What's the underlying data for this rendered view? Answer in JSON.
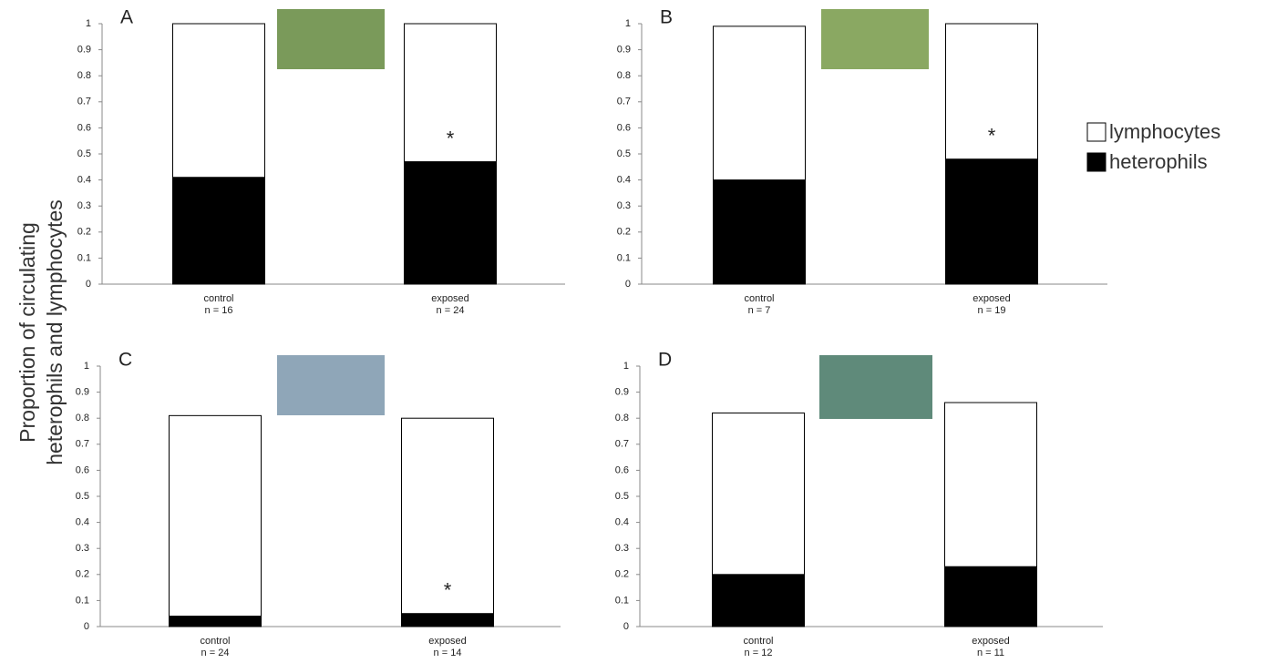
{
  "chart_data": [
    {
      "type": "bar",
      "stacked": true,
      "label": "A",
      "ylim": [
        0,
        1
      ],
      "yticks": [
        0,
        0.1,
        0.2,
        0.3,
        0.4,
        0.5,
        0.6,
        0.7,
        0.8,
        0.9,
        1
      ],
      "categories": [
        "control",
        "exposed"
      ],
      "n_labels": [
        "n = 16",
        "n = 24"
      ],
      "markers": [
        null,
        "*"
      ],
      "series": [
        {
          "name": "heterophils",
          "color": "#000000",
          "values": [
            0.41,
            0.47
          ]
        },
        {
          "name": "lymphocytes",
          "color": "#ffffff",
          "values": [
            0.59,
            0.53
          ]
        }
      ]
    },
    {
      "type": "bar",
      "stacked": true,
      "label": "B",
      "ylim": [
        0,
        1
      ],
      "yticks": [
        0,
        0.1,
        0.2,
        0.3,
        0.4,
        0.5,
        0.6,
        0.7,
        0.8,
        0.9,
        1
      ],
      "categories": [
        "control",
        "exposed"
      ],
      "n_labels": [
        "n = 7",
        "n = 19"
      ],
      "markers": [
        null,
        "*"
      ],
      "series": [
        {
          "name": "heterophils",
          "color": "#000000",
          "values": [
            0.4,
            0.48
          ]
        },
        {
          "name": "lymphocytes",
          "color": "#ffffff",
          "values": [
            0.59,
            0.52
          ]
        }
      ]
    },
    {
      "type": "bar",
      "stacked": true,
      "label": "C",
      "ylim": [
        0,
        1
      ],
      "yticks": [
        0,
        0.1,
        0.2,
        0.3,
        0.4,
        0.5,
        0.6,
        0.7,
        0.8,
        0.9,
        1
      ],
      "categories": [
        "control",
        "exposed"
      ],
      "n_labels": [
        "n = 24",
        "n = 14"
      ],
      "markers": [
        null,
        "*"
      ],
      "series": [
        {
          "name": "heterophils",
          "color": "#000000",
          "values": [
            0.04,
            0.05
          ]
        },
        {
          "name": "lymphocytes",
          "color": "#ffffff",
          "values": [
            0.77,
            0.75
          ]
        }
      ]
    },
    {
      "type": "bar",
      "stacked": true,
      "label": "D",
      "ylim": [
        0,
        1
      ],
      "yticks": [
        0,
        0.1,
        0.2,
        0.3,
        0.4,
        0.5,
        0.6,
        0.7,
        0.8,
        0.9,
        1
      ],
      "categories": [
        "control",
        "exposed"
      ],
      "n_labels": [
        "n = 12",
        "n = 11"
      ],
      "markers": [
        null,
        null
      ],
      "series": [
        {
          "name": "heterophils",
          "color": "#000000",
          "values": [
            0.2,
            0.23
          ]
        },
        {
          "name": "lymphocytes",
          "color": "#ffffff",
          "values": [
            0.62,
            0.63
          ]
        }
      ]
    }
  ],
  "y_label": [
    "Proportion of circulating",
    "heterophils and lymphocytes"
  ]
}
